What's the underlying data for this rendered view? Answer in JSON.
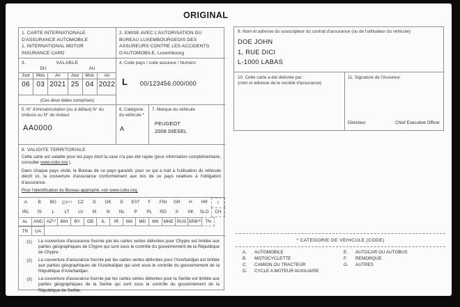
{
  "title": "ORIGINAL",
  "box1": {
    "line1": "1. CARTE INTERNATIONALE",
    "line2": "D'ASSURANCE AUTOMOBILE",
    "line3": "1. INTERNATIONAL MOTOR",
    "line4": "INSURANCE CARD"
  },
  "box2": {
    "text": "2. EMISE AVEC L'AUTORISATION DU BUREAU LUXEMBOURGEOIS DES ASSUREURS CONTRE LES ACCIDENTS D'AUTOMOBILE, Luxembourg"
  },
  "box3": {
    "number": "3.",
    "valable": "VALABLE",
    "du": "DU",
    "au": "AU",
    "col_day": "Jour",
    "col_month": "Mois",
    "col_year": "An",
    "from": {
      "day": "06",
      "month": "03",
      "year": "2021"
    },
    "to": {
      "day": "25",
      "month": "04",
      "year": "2022"
    },
    "note": "(Ces deux dates comprises)"
  },
  "box4": {
    "label": "4. Code pays / code assureur / Numéro",
    "country_code": "L",
    "number": "00/123456.000/000"
  },
  "box5": {
    "label": "5. N° d'immatriculation (ou à défaut) N° du châssis ou N° du moteur",
    "value": "AA0000"
  },
  "box6": {
    "label": "6. Catégorie du véhicule *",
    "value": "A"
  },
  "box7": {
    "label": "7. Marque du véhicule",
    "value_line1": "PEUGEOT",
    "value_line2": "2008 DIESEL"
  },
  "box8": {
    "title": "8. VALIDITE TERRITORIALE",
    "p1_before": "Cette carte est valable pour les pays dont la case n'a pas été rayée (pour information complémentaire, consulter ",
    "p1_link": "www.cobx.org",
    "p1_after": " ).",
    "p2": "Dans chaque pays visité, le Bureau de ce pays garantit, pour ce qui a trait à l'utilisation du véhicule décrit ici, la couverture d'assurance conformément aux lois de ce pays relatives à l'obligation d'assurance.",
    "p3": "Pour l'identification du Bureau approprié, voir www.cobx.org."
  },
  "countries": {
    "row1": [
      "A",
      "B",
      "BG",
      "CY⁽¹⁾",
      "CZ",
      "D",
      "DK",
      "E",
      "EST",
      "F",
      "FIN",
      "GR",
      "H",
      "HR",
      "I"
    ],
    "row2": [
      "IRL",
      "IS",
      "L",
      "LT",
      "LV",
      "M",
      "N",
      "NL",
      "P",
      "PL",
      "RO",
      "S",
      "SK",
      "SLO",
      "CH"
    ],
    "row3": [
      "AL",
      "AND",
      "AZ⁽²⁾",
      "BIH",
      "BY",
      "GB",
      "IL",
      "IR",
      "MA",
      "MD",
      "MK",
      "MNE",
      "RUS",
      "SRB⁽³⁾",
      "TN"
    ],
    "row4": [
      "TR",
      "UA"
    ]
  },
  "footnotes": [
    {
      "num": "(1)",
      "text": "La couverture d'assurance fournie par les cartes vertes délivrées pour Chypre est limitée aux parties géographiques de Chypre qui sont sous le contrôle du gouvernement de la République de Chypre."
    },
    {
      "num": "(2)",
      "text": "La couverture d'assurance fournie par les cartes vertes délivrées pour l'Azerbaïdjan est limitée aux parties géographiques de l'Azerbaïdjan qui sont sous le contrôle du gouvernement de la République d'Azerbaïdjan."
    },
    {
      "num": "(3)",
      "text": "La couverture d'assurance fournie par les cartes vertes délivrées pour la Serbie est limitée aux parties géographiques de la Serbie qui sont sous le contrôle du gouvernement de la République de Serbie."
    }
  ],
  "box9": {
    "label": "9. Nom et adresse du souscripteur du contrat d'assurance (ou de l'utilisateur du véhicule)",
    "line1": "DOE JOHN",
    "line2": "1, RUE DICI",
    "line3": "L-1000 LABAS"
  },
  "box10": {
    "label_line1": "10. Cette carte a été délivrée par :",
    "label_line2": "(nom et adresse de la société d'assurance)"
  },
  "box11": {
    "label": "11. Signature de l'Assureur",
    "sig_left": "Directeur",
    "sig_right": "Chief Executive Officer"
  },
  "categories": {
    "title": "* CATEGORIE DE VEHICULE (CODE)",
    "left": [
      {
        "code": "A.",
        "label": "AUTOMOBILE"
      },
      {
        "code": "B.",
        "label": "MOTOCYCLETTE"
      },
      {
        "code": "C.",
        "label": "CAMION OU TRACTEUR"
      },
      {
        "code": "D.",
        "label": "CYCLE A MOTEUR AUXILIAIRE"
      }
    ],
    "right": [
      {
        "code": "E.",
        "label": "AUTOCAR OU AUTOBUS"
      },
      {
        "code": "F.",
        "label": "REMORQUE"
      },
      {
        "code": "G.",
        "label": "AUTRES"
      }
    ]
  },
  "colors": {
    "paper": "#fbfbf9",
    "ink": "#2e2e2e",
    "line": "#8f8f8f",
    "frame": "#0b0b0b"
  }
}
